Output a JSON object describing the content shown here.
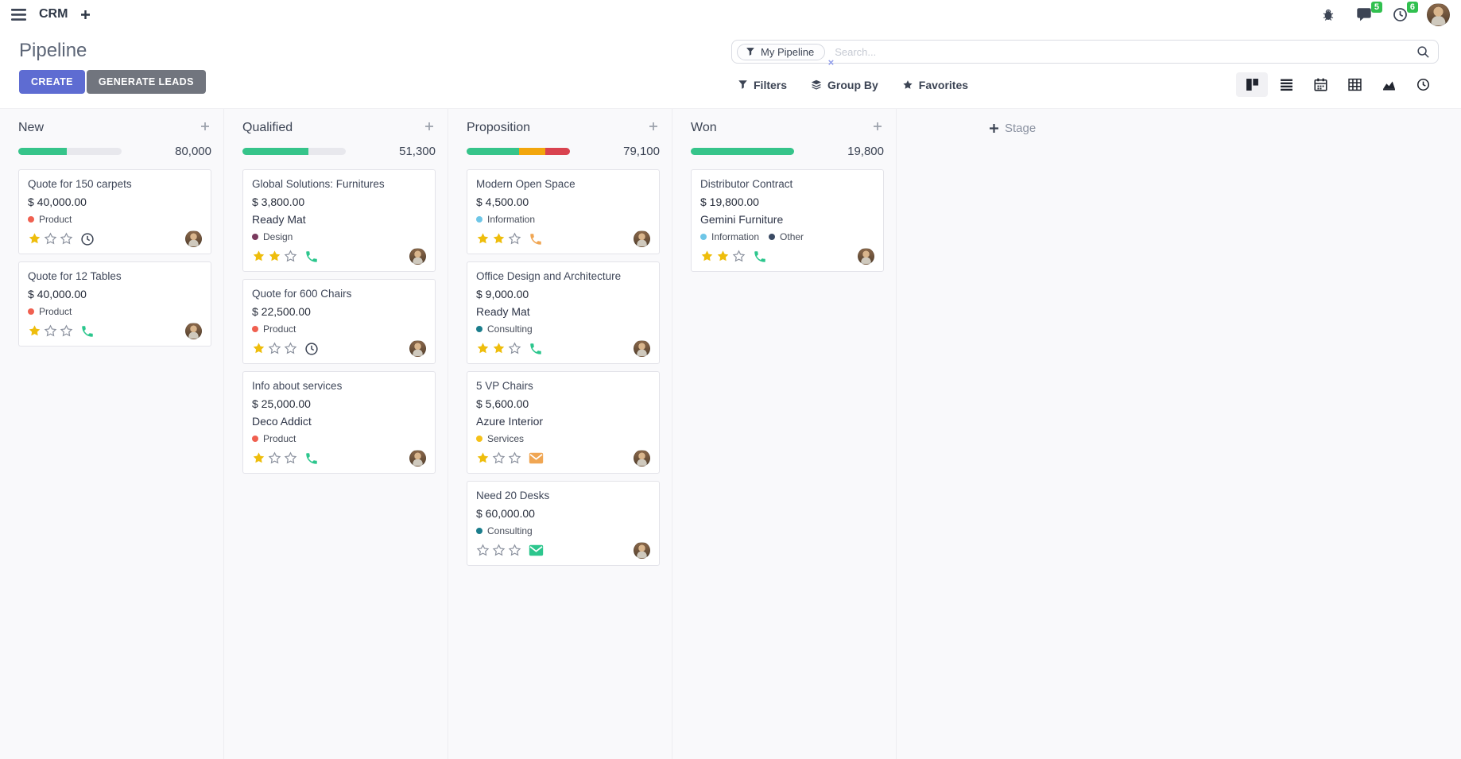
{
  "nav": {
    "app_name": "CRM",
    "messages_badge": "5",
    "activities_badge": "6"
  },
  "control_panel": {
    "title": "Pipeline",
    "create_label": "CREATE",
    "generate_leads_label": "GENERATE LEADS",
    "search": {
      "facet_label": "My Pipeline",
      "placeholder": "Search...",
      "remove_glyph": "×"
    },
    "filters_label": "Filters",
    "group_by_label": "Group By",
    "favorites_label": "Favorites"
  },
  "icons": {
    "nav": [
      "menu-icon",
      "plus-icon",
      "bug-icon",
      "messages-icon",
      "activities-clock-icon",
      "avatar"
    ],
    "search": [
      "filter-funnel-icon",
      "magnifier-icon"
    ],
    "views": [
      "kanban",
      "list",
      "calendar",
      "pivot",
      "graph",
      "activity"
    ],
    "card_activities": [
      "clock",
      "phone",
      "mail"
    ]
  },
  "colors": {
    "primary_button": "#5e6cd2",
    "secondary_button": "#71757e",
    "badge_green": "#31c04f",
    "progress_green": "#36c48a",
    "progress_orange": "#f2a60d",
    "progress_red": "#d9434f",
    "star_yellow": "#eebd0c"
  },
  "kanban": {
    "add_stage_label": "Stage",
    "columns": [
      {
        "name": "New",
        "count": "80,000",
        "progress": [
          {
            "color": "#36c48a",
            "pct": 47
          }
        ],
        "cards": [
          {
            "title": "Quote for 150 carpets",
            "amount": "$ 40,000.00",
            "partner": "",
            "tags": [
              {
                "label": "Product",
                "color": "#f06050"
              }
            ],
            "stars": 1,
            "activity": {
              "icon": "clock",
              "color": "#3c4454"
            }
          },
          {
            "title": "Quote for 12 Tables",
            "amount": "$ 40,000.00",
            "partner": "",
            "tags": [
              {
                "label": "Product",
                "color": "#f06050"
              }
            ],
            "stars": 1,
            "activity": {
              "icon": "phone",
              "color": "#2cc68d"
            }
          }
        ]
      },
      {
        "name": "Qualified",
        "count": "51,300",
        "progress": [
          {
            "color": "#36c48a",
            "pct": 64
          }
        ],
        "cards": [
          {
            "title": "Global Solutions: Furnitures",
            "amount": "$ 3,800.00",
            "partner": "Ready Mat",
            "tags": [
              {
                "label": "Design",
                "color": "#7a3a5e"
              }
            ],
            "stars": 2,
            "activity": {
              "icon": "phone",
              "color": "#2cc68d"
            }
          },
          {
            "title": "Quote for 600 Chairs",
            "amount": "$ 22,500.00",
            "partner": "",
            "tags": [
              {
                "label": "Product",
                "color": "#f06050"
              }
            ],
            "stars": 1,
            "activity": {
              "icon": "clock",
              "color": "#3c4454"
            }
          },
          {
            "title": "Info about services",
            "amount": "$ 25,000.00",
            "partner": "Deco Addict",
            "tags": [
              {
                "label": "Product",
                "color": "#f06050"
              }
            ],
            "stars": 1,
            "activity": {
              "icon": "phone",
              "color": "#2cc68d"
            }
          }
        ]
      },
      {
        "name": "Proposition",
        "count": "79,100",
        "progress": [
          {
            "color": "#36c48a",
            "pct": 51
          },
          {
            "color": "#f2a60d",
            "pct": 25
          },
          {
            "color": "#d9434f",
            "pct": 24
          }
        ],
        "cards": [
          {
            "title": "Modern Open Space",
            "amount": "$ 4,500.00",
            "partner": "",
            "tags": [
              {
                "label": "Information",
                "color": "#6ec6e7"
              }
            ],
            "stars": 2,
            "activity": {
              "icon": "phone",
              "color": "#f0a653"
            }
          },
          {
            "title": "Office Design and Architecture",
            "amount": "$ 9,000.00",
            "partner": "Ready Mat",
            "tags": [
              {
                "label": "Consulting",
                "color": "#1b7d8c"
              }
            ],
            "stars": 2,
            "activity": {
              "icon": "phone",
              "color": "#2cc68d"
            }
          },
          {
            "title": "5 VP Chairs",
            "amount": "$ 5,600.00",
            "partner": "Azure Interior",
            "tags": [
              {
                "label": "Services",
                "color": "#f5c118"
              }
            ],
            "stars": 1,
            "activity": {
              "icon": "mail",
              "color": "#f0a653"
            }
          },
          {
            "title": "Need 20 Desks",
            "amount": "$ 60,000.00",
            "partner": "",
            "tags": [
              {
                "label": "Consulting",
                "color": "#1b7d8c"
              }
            ],
            "stars": 0,
            "activity": {
              "icon": "mail",
              "color": "#2cc68d"
            }
          }
        ]
      },
      {
        "name": "Won",
        "count": "19,800",
        "progress": [
          {
            "color": "#36c48a",
            "pct": 100
          }
        ],
        "cards": [
          {
            "title": "Distributor Contract",
            "amount": "$ 19,800.00",
            "partner": "Gemini Furniture",
            "tags": [
              {
                "label": "Information",
                "color": "#6ec6e7"
              },
              {
                "label": "Other",
                "color": "#3a4a63"
              }
            ],
            "stars": 2,
            "activity": {
              "icon": "phone",
              "color": "#2cc68d"
            }
          }
        ]
      }
    ]
  }
}
